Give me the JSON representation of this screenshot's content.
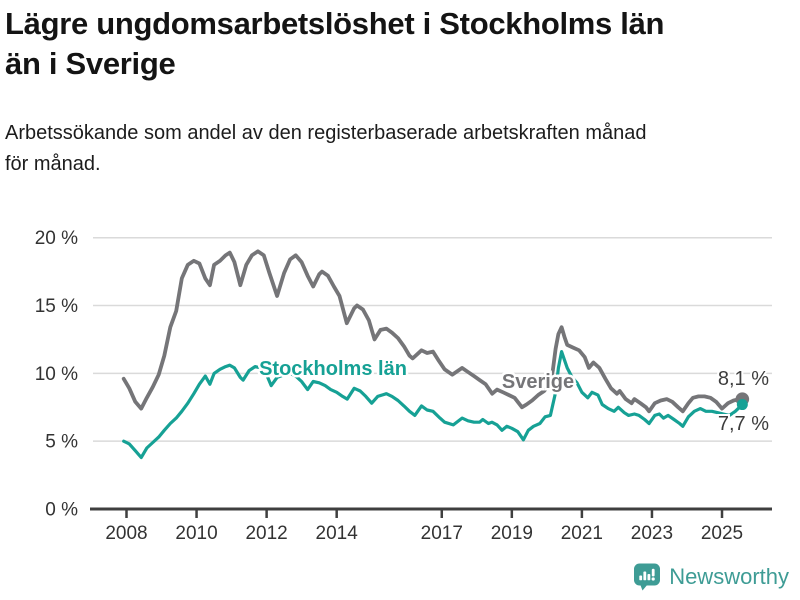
{
  "header": {
    "title_lines": [
      "Lägre ungdomsarbetslöshet i Stockholms län",
      "än i Sverige"
    ],
    "subtitle_lines": [
      "Arbetssökande som andel av den registerbaserade arbetskraften månad",
      "för månad."
    ]
  },
  "chart_data": {
    "type": "line",
    "title": "Lägre ungdomsarbetslöshet i Stockholms län än i Sverige",
    "subtitle": "Arbetssökande som andel av den registerbaserade arbetskraften månad för månad.",
    "unit": "%",
    "grid": "horizontal",
    "legend_position": "inline-labels-on-lines",
    "x_axis": {
      "tick_years": [
        2008,
        2010,
        2012,
        2014,
        2017,
        2019,
        2021,
        2023,
        2025
      ],
      "tick_labels": [
        "2008",
        "2010",
        "2012",
        "2014",
        "2017",
        "2019",
        "2021",
        "2023",
        "2025"
      ],
      "range": [
        2007.9,
        2025.8
      ]
    },
    "y_axis": {
      "ticks": [
        {
          "value": 0,
          "label": "0 %"
        },
        {
          "value": 5,
          "label": "5 %"
        },
        {
          "value": 10,
          "label": "10 %"
        },
        {
          "value": 15,
          "label": "15 %"
        },
        {
          "value": 20,
          "label": "20 %"
        }
      ],
      "range": [
        0,
        20
      ]
    },
    "style": {
      "grid_color": "#DADADA",
      "axis_color": "#3F3F3F",
      "tick_label_color": "#333333"
    },
    "series": [
      {
        "name": "Sverige",
        "color": "#757578",
        "end_label": "8,1 %",
        "end_value": 8.1,
        "points": [
          [
            2007.92,
            9.6
          ],
          [
            2008.08,
            8.9
          ],
          [
            2008.25,
            7.9
          ],
          [
            2008.42,
            7.4
          ],
          [
            2008.58,
            8.2
          ],
          [
            2008.75,
            9.0
          ],
          [
            2008.92,
            9.9
          ],
          [
            2009.08,
            11.3
          ],
          [
            2009.25,
            13.4
          ],
          [
            2009.42,
            14.6
          ],
          [
            2009.58,
            17.0
          ],
          [
            2009.75,
            18.0
          ],
          [
            2009.92,
            18.3
          ],
          [
            2010.08,
            18.1
          ],
          [
            2010.25,
            17.0
          ],
          [
            2010.38,
            16.5
          ],
          [
            2010.5,
            18.0
          ],
          [
            2010.67,
            18.3
          ],
          [
            2010.83,
            18.7
          ],
          [
            2010.95,
            18.9
          ],
          [
            2011.08,
            18.2
          ],
          [
            2011.25,
            16.5
          ],
          [
            2011.42,
            18.0
          ],
          [
            2011.58,
            18.7
          ],
          [
            2011.75,
            19.0
          ],
          [
            2011.92,
            18.7
          ],
          [
            2012.08,
            17.4
          ],
          [
            2012.3,
            15.7
          ],
          [
            2012.5,
            17.4
          ],
          [
            2012.67,
            18.4
          ],
          [
            2012.83,
            18.7
          ],
          [
            2013.0,
            18.2
          ],
          [
            2013.17,
            17.2
          ],
          [
            2013.33,
            16.4
          ],
          [
            2013.5,
            17.3
          ],
          [
            2013.58,
            17.5
          ],
          [
            2013.75,
            17.2
          ],
          [
            2013.92,
            16.4
          ],
          [
            2014.08,
            15.7
          ],
          [
            2014.29,
            13.7
          ],
          [
            2014.5,
            14.8
          ],
          [
            2014.58,
            15.0
          ],
          [
            2014.75,
            14.7
          ],
          [
            2014.92,
            13.9
          ],
          [
            2015.08,
            12.5
          ],
          [
            2015.25,
            13.2
          ],
          [
            2015.42,
            13.3
          ],
          [
            2015.58,
            13.0
          ],
          [
            2015.75,
            12.6
          ],
          [
            2015.92,
            12.0
          ],
          [
            2016.08,
            11.3
          ],
          [
            2016.17,
            11.1
          ],
          [
            2016.42,
            11.7
          ],
          [
            2016.58,
            11.5
          ],
          [
            2016.75,
            11.6
          ],
          [
            2016.92,
            10.9
          ],
          [
            2017.08,
            10.3
          ],
          [
            2017.3,
            9.9
          ],
          [
            2017.58,
            10.4
          ],
          [
            2017.75,
            10.1
          ],
          [
            2017.92,
            9.8
          ],
          [
            2018.08,
            9.5
          ],
          [
            2018.25,
            9.2
          ],
          [
            2018.44,
            8.5
          ],
          [
            2018.58,
            8.8
          ],
          [
            2018.75,
            8.6
          ],
          [
            2018.92,
            8.4
          ],
          [
            2019.08,
            8.2
          ],
          [
            2019.29,
            7.5
          ],
          [
            2019.42,
            7.7
          ],
          [
            2019.58,
            8.0
          ],
          [
            2019.75,
            8.4
          ],
          [
            2019.92,
            8.7
          ],
          [
            2020.08,
            9.2
          ],
          [
            2020.17,
            10.2
          ],
          [
            2020.25,
            11.8
          ],
          [
            2020.33,
            12.9
          ],
          [
            2020.42,
            13.4
          ],
          [
            2020.5,
            12.7
          ],
          [
            2020.58,
            12.1
          ],
          [
            2020.75,
            11.9
          ],
          [
            2020.92,
            11.7
          ],
          [
            2021.08,
            11.2
          ],
          [
            2021.2,
            10.4
          ],
          [
            2021.33,
            10.8
          ],
          [
            2021.5,
            10.4
          ],
          [
            2021.67,
            9.6
          ],
          [
            2021.83,
            8.9
          ],
          [
            2022.0,
            8.5
          ],
          [
            2022.08,
            8.7
          ],
          [
            2022.25,
            8.1
          ],
          [
            2022.42,
            7.8
          ],
          [
            2022.5,
            8.1
          ],
          [
            2022.67,
            7.8
          ],
          [
            2022.83,
            7.5
          ],
          [
            2022.92,
            7.2
          ],
          [
            2023.08,
            7.8
          ],
          [
            2023.25,
            8.0
          ],
          [
            2023.42,
            8.1
          ],
          [
            2023.58,
            7.9
          ],
          [
            2023.75,
            7.5
          ],
          [
            2023.88,
            7.2
          ],
          [
            2024.04,
            7.8
          ],
          [
            2024.17,
            8.2
          ],
          [
            2024.33,
            8.3
          ],
          [
            2024.5,
            8.3
          ],
          [
            2024.67,
            8.2
          ],
          [
            2024.83,
            7.9
          ],
          [
            2025.0,
            7.4
          ],
          [
            2025.17,
            7.8
          ],
          [
            2025.33,
            8.0
          ],
          [
            2025.5,
            8.1
          ],
          [
            2025.58,
            8.1
          ]
        ]
      },
      {
        "name": "Stockholms län",
        "color": "#16A195",
        "end_label": "7,7 %",
        "end_value": 7.7,
        "points": [
          [
            2007.92,
            5.0
          ],
          [
            2008.08,
            4.8
          ],
          [
            2008.25,
            4.3
          ],
          [
            2008.42,
            3.8
          ],
          [
            2008.58,
            4.5
          ],
          [
            2008.75,
            4.9
          ],
          [
            2008.92,
            5.3
          ],
          [
            2009.08,
            5.8
          ],
          [
            2009.25,
            6.3
          ],
          [
            2009.42,
            6.7
          ],
          [
            2009.58,
            7.2
          ],
          [
            2009.75,
            7.8
          ],
          [
            2009.92,
            8.5
          ],
          [
            2010.08,
            9.2
          ],
          [
            2010.25,
            9.8
          ],
          [
            2010.38,
            9.2
          ],
          [
            2010.5,
            10.0
          ],
          [
            2010.67,
            10.3
          ],
          [
            2010.83,
            10.5
          ],
          [
            2010.95,
            10.6
          ],
          [
            2011.08,
            10.4
          ],
          [
            2011.25,
            9.7
          ],
          [
            2011.33,
            9.5
          ],
          [
            2011.5,
            10.2
          ],
          [
            2011.67,
            10.5
          ],
          [
            2011.83,
            10.4
          ],
          [
            2012.0,
            9.9
          ],
          [
            2012.13,
            9.1
          ],
          [
            2012.3,
            9.7
          ],
          [
            2012.5,
            9.9
          ],
          [
            2012.67,
            10.0
          ],
          [
            2012.83,
            9.8
          ],
          [
            2013.0,
            9.4
          ],
          [
            2013.17,
            8.8
          ],
          [
            2013.33,
            9.4
          ],
          [
            2013.5,
            9.3
          ],
          [
            2013.67,
            9.1
          ],
          [
            2013.83,
            8.8
          ],
          [
            2014.0,
            8.6
          ],
          [
            2014.17,
            8.3
          ],
          [
            2014.3,
            8.1
          ],
          [
            2014.5,
            8.9
          ],
          [
            2014.67,
            8.7
          ],
          [
            2014.83,
            8.3
          ],
          [
            2015.0,
            7.8
          ],
          [
            2015.17,
            8.3
          ],
          [
            2015.42,
            8.5
          ],
          [
            2015.58,
            8.3
          ],
          [
            2015.75,
            8.0
          ],
          [
            2015.92,
            7.6
          ],
          [
            2016.08,
            7.2
          ],
          [
            2016.23,
            6.9
          ],
          [
            2016.42,
            7.6
          ],
          [
            2016.58,
            7.3
          ],
          [
            2016.75,
            7.2
          ],
          [
            2016.95,
            6.7
          ],
          [
            2017.08,
            6.4
          ],
          [
            2017.33,
            6.2
          ],
          [
            2017.58,
            6.7
          ],
          [
            2017.75,
            6.5
          ],
          [
            2017.92,
            6.4
          ],
          [
            2018.08,
            6.4
          ],
          [
            2018.17,
            6.6
          ],
          [
            2018.33,
            6.3
          ],
          [
            2018.43,
            6.4
          ],
          [
            2018.58,
            6.2
          ],
          [
            2018.72,
            5.8
          ],
          [
            2018.86,
            6.1
          ],
          [
            2019.0,
            5.95
          ],
          [
            2019.17,
            5.7
          ],
          [
            2019.33,
            5.1
          ],
          [
            2019.47,
            5.8
          ],
          [
            2019.62,
            6.1
          ],
          [
            2019.8,
            6.3
          ],
          [
            2019.95,
            6.8
          ],
          [
            2020.1,
            6.9
          ],
          [
            2020.25,
            8.6
          ],
          [
            2020.33,
            10.4
          ],
          [
            2020.42,
            11.6
          ],
          [
            2020.5,
            11.0
          ],
          [
            2020.58,
            10.4
          ],
          [
            2020.72,
            9.7
          ],
          [
            2020.86,
            9.3
          ],
          [
            2021.0,
            8.6
          ],
          [
            2021.17,
            8.2
          ],
          [
            2021.29,
            8.6
          ],
          [
            2021.46,
            8.4
          ],
          [
            2021.58,
            7.7
          ],
          [
            2021.75,
            7.4
          ],
          [
            2021.92,
            7.2
          ],
          [
            2022.04,
            7.5
          ],
          [
            2022.21,
            7.1
          ],
          [
            2022.33,
            6.9
          ],
          [
            2022.5,
            7.0
          ],
          [
            2022.63,
            6.9
          ],
          [
            2022.79,
            6.6
          ],
          [
            2022.92,
            6.3
          ],
          [
            2023.08,
            6.9
          ],
          [
            2023.21,
            7.0
          ],
          [
            2023.33,
            6.7
          ],
          [
            2023.46,
            6.9
          ],
          [
            2023.63,
            6.6
          ],
          [
            2023.79,
            6.3
          ],
          [
            2023.88,
            6.1
          ],
          [
            2024.04,
            6.8
          ],
          [
            2024.21,
            7.2
          ],
          [
            2024.38,
            7.4
          ],
          [
            2024.54,
            7.2
          ],
          [
            2024.71,
            7.2
          ],
          [
            2024.88,
            7.1
          ],
          [
            2025.04,
            7.0
          ],
          [
            2025.21,
            6.9
          ],
          [
            2025.38,
            7.2
          ],
          [
            2025.5,
            7.5
          ],
          [
            2025.58,
            7.7
          ]
        ]
      }
    ]
  },
  "footer": {
    "brand": "Newsworthy",
    "logo_icon": "bar-chart-speech-bubble-icon",
    "brand_color": "#3E9C95"
  }
}
